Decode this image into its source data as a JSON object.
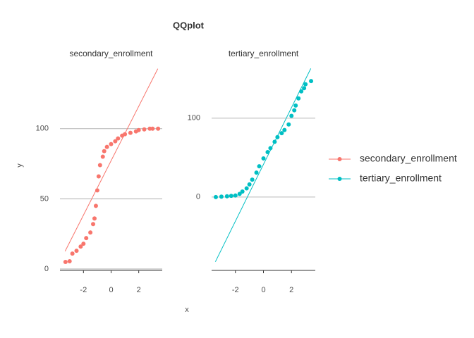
{
  "chart_data": {
    "type": "scatter",
    "title": "QQplot",
    "x_label": "x",
    "y_label": "y",
    "legend": "right",
    "grid": true,
    "xticks": [
      -2,
      0,
      2
    ],
    "series": [
      {
        "name": "secondary_enrollment",
        "color": "#F8766D",
        "xlim": [
          -3.7,
          3.7
        ],
        "ylim": [
          -1,
          144
        ],
        "yticks": [
          0,
          50,
          100
        ],
        "x": [
          -3.3,
          -3.0,
          -2.8,
          -2.5,
          -2.2,
          -2.0,
          -1.8,
          -1.5,
          -1.3,
          -1.2,
          -1.1,
          -1.0,
          -0.9,
          -0.8,
          -0.6,
          -0.5,
          -0.3,
          0.0,
          0.3,
          0.5,
          0.8,
          1.0,
          1.4,
          1.8,
          2.0,
          2.4,
          2.8,
          3.0,
          3.4
        ],
        "y": [
          5,
          5.5,
          11,
          13,
          16,
          18,
          22,
          26,
          32,
          36,
          45,
          56,
          66,
          74,
          80,
          84,
          87,
          89,
          91,
          93,
          95,
          96,
          97,
          98,
          99,
          99.5,
          100,
          100,
          100
        ],
        "line_x": [
          -3.33,
          3.38
        ],
        "line_y": [
          12.6,
          142.7
        ]
      },
      {
        "name": "tertiary_enrollment",
        "color": "#00BFC4",
        "xlim": [
          -3.7,
          3.7
        ],
        "ylim": [
          -93,
          165
        ],
        "yticks": [
          0,
          100
        ],
        "x": [
          -3.4,
          -3.0,
          -2.6,
          -2.3,
          -2.0,
          -1.7,
          -1.5,
          -1.2,
          -1.0,
          -0.8,
          -0.5,
          -0.3,
          0.0,
          0.3,
          0.5,
          0.8,
          1.0,
          1.3,
          1.5,
          1.8,
          2.0,
          2.2,
          2.3,
          2.5,
          2.7,
          2.9,
          3.0,
          3.4
        ],
        "y": [
          0,
          0.5,
          1,
          1.5,
          2,
          4,
          7,
          11,
          16,
          22,
          31,
          39,
          49,
          57,
          62,
          70,
          76,
          81,
          85,
          92,
          103,
          110,
          116,
          125,
          134,
          138,
          143,
          147
        ],
        "line_x": [
          -3.43,
          3.38
        ],
        "line_y": [
          -82,
          163
        ]
      }
    ]
  }
}
